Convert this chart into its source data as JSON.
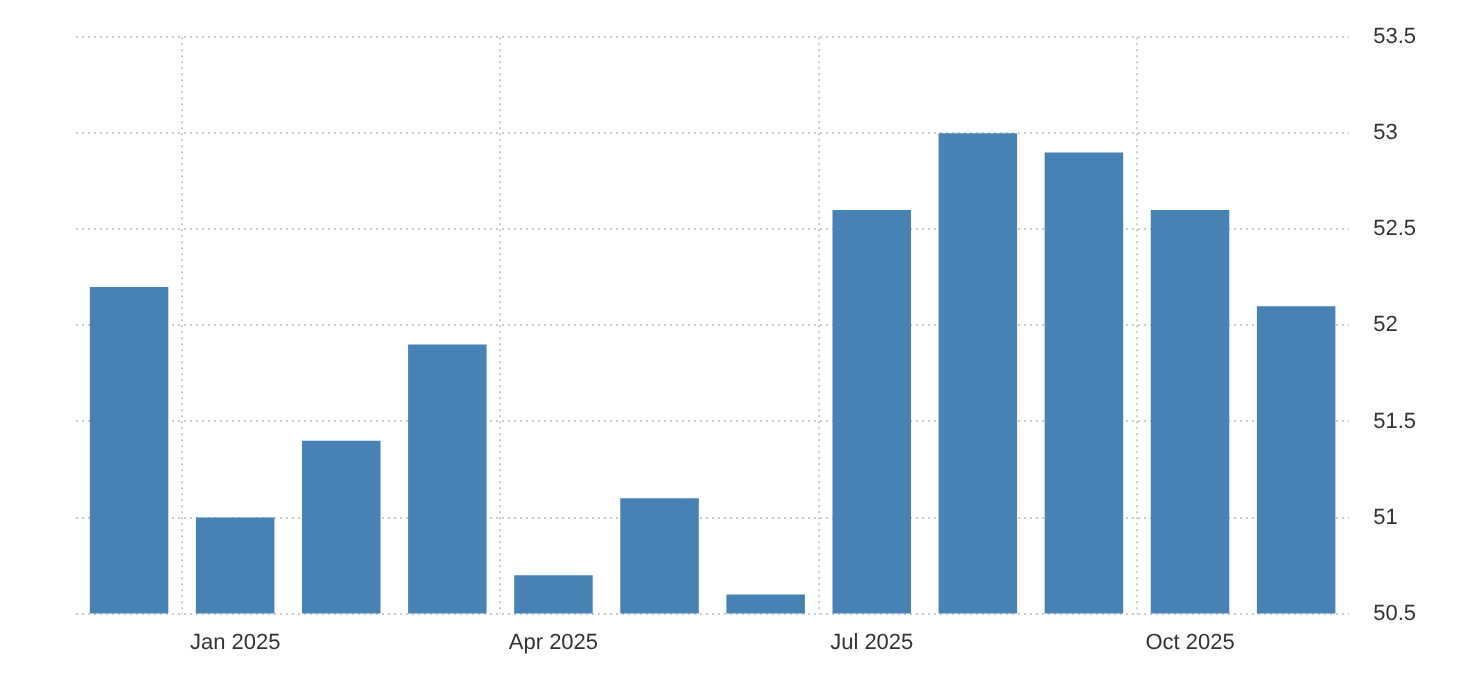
{
  "chart_data": {
    "type": "bar",
    "categories": [
      null,
      "Jan 2025",
      null,
      null,
      "Apr 2025",
      null,
      null,
      "Jul 2025",
      null,
      null,
      "Oct 2025",
      null
    ],
    "values": [
      52.2,
      51.0,
      51.4,
      51.9,
      50.7,
      51.1,
      50.6,
      52.6,
      53.0,
      52.9,
      52.6,
      52.1
    ],
    "color": "#4682b4",
    "ylim": [
      50.5,
      53.5
    ],
    "yticks": [
      50.5,
      51,
      51.5,
      52,
      52.5,
      53,
      53.5
    ],
    "grid": true
  }
}
